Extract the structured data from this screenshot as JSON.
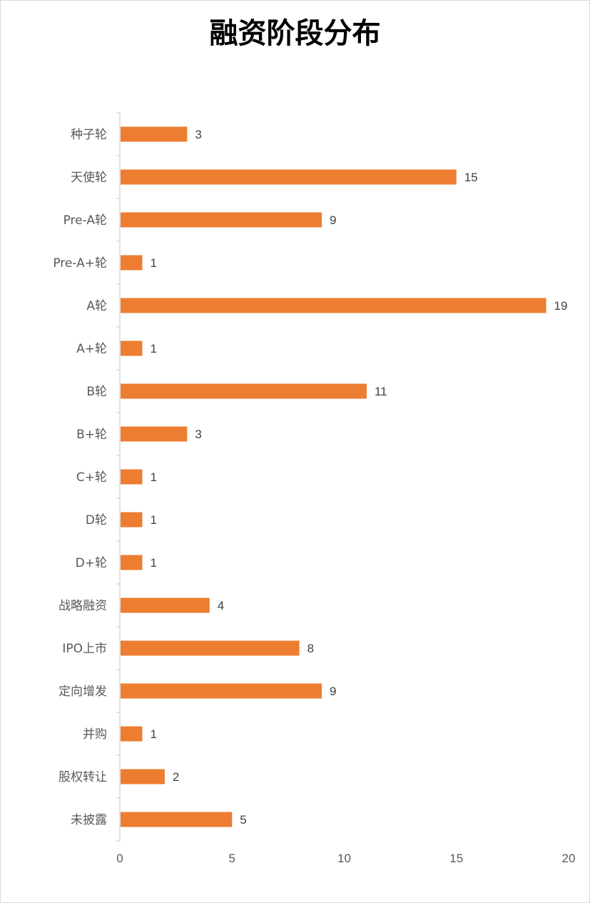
{
  "chart_data": {
    "type": "bar",
    "orientation": "horizontal",
    "title": "融资阶段分布",
    "categories": [
      "种子轮",
      "天使轮",
      "Pre-A轮",
      "Pre-A+轮",
      "A轮",
      "A+轮",
      "B轮",
      "B+轮",
      "C+轮",
      "D轮",
      "D+轮",
      "战略融资",
      "IPO上市",
      "定向增发",
      "并购",
      "股权转让",
      "未披露"
    ],
    "values": [
      3,
      15,
      9,
      1,
      19,
      1,
      11,
      3,
      1,
      1,
      1,
      4,
      8,
      9,
      1,
      2,
      5
    ],
    "xlim": [
      0,
      20
    ],
    "xticks": [
      0,
      5,
      10,
      15,
      20
    ],
    "grid": false,
    "legend": "none",
    "bar_color": "#ED7D31",
    "axis_color": "#D9D9D9"
  }
}
